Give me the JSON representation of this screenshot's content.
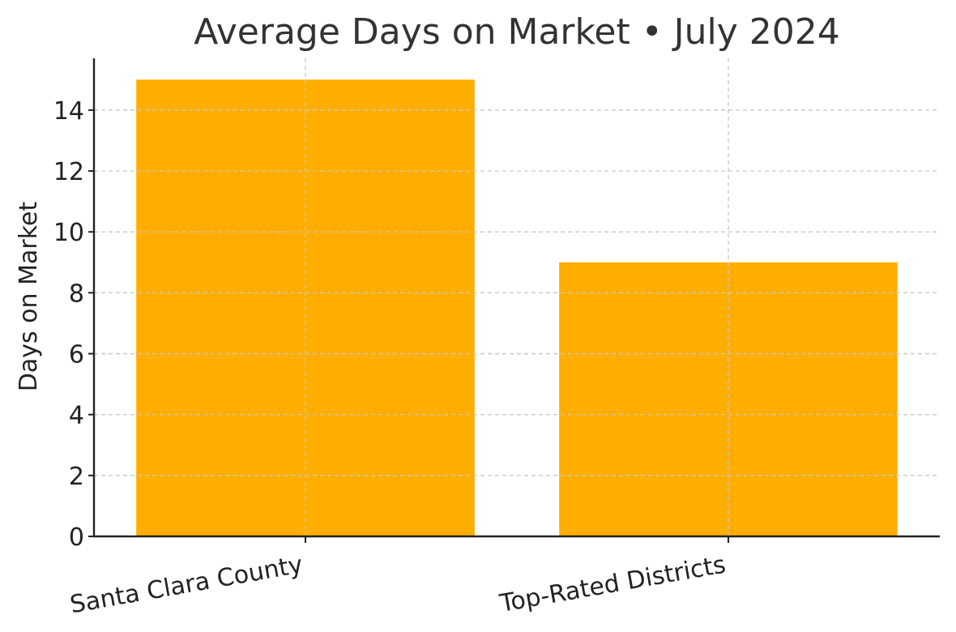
{
  "chart_data": {
    "type": "bar",
    "title": "Average Days on Market • July 2024",
    "xlabel": "",
    "ylabel": "Days on Market",
    "categories": [
      "Santa Clara County",
      "Top-Rated Districts"
    ],
    "values": [
      15,
      9
    ],
    "ylim": [
      0,
      15.7
    ],
    "yticks": [
      "0",
      "2",
      "4",
      "6",
      "8",
      "10",
      "12",
      "14"
    ],
    "bar_color": "#FFAE00",
    "grid": true,
    "legend": "none"
  }
}
